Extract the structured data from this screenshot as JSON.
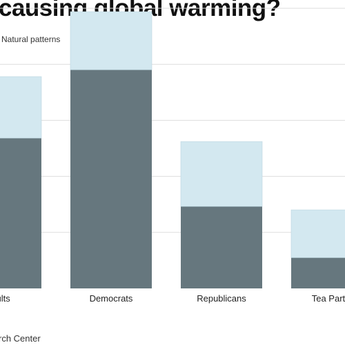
{
  "title": "causing global warming?",
  "legend": {
    "visible_text": "Natural patterns"
  },
  "source": "rch Center",
  "colors": {
    "human_activity": "#66777e",
    "natural_patterns": "#d3e8f0",
    "gridline": "#dddddd"
  },
  "chart_data": {
    "type": "bar",
    "stacked": true,
    "title": "causing global warming?",
    "categories": [
      "dults",
      "Democrats",
      "Republicans",
      "Tea Partie"
    ],
    "series": [
      {
        "values": [
          44,
          64,
          24,
          9
        ]
      },
      {
        "name": "Natural patterns",
        "values": [
          18,
          17,
          19,
          14
        ]
      }
    ],
    "ylim": [
      0,
      82
    ],
    "grid": true,
    "legend_position": "top-left"
  }
}
